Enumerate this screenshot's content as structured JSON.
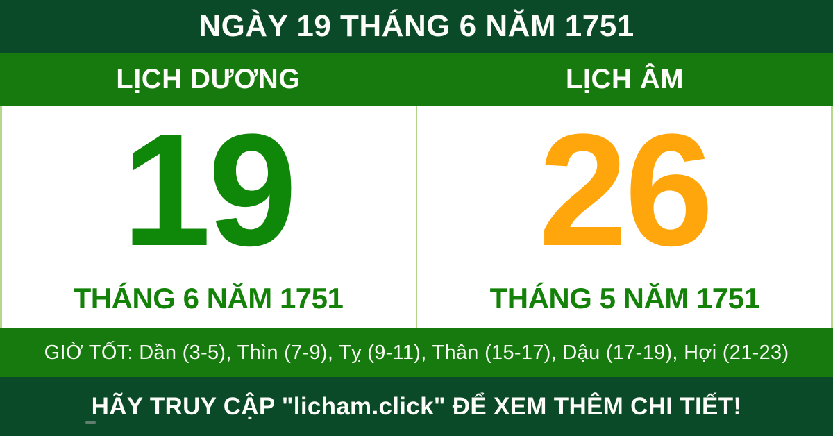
{
  "header": {
    "title": "NGÀY 19 THÁNG 6 NĂM 1751"
  },
  "calendar_tabs": {
    "solar_label": "LỊCH DƯƠNG",
    "lunar_label": "LỊCH ÂM"
  },
  "solar_panel": {
    "day": "19",
    "month_year": "THÁNG 6 NĂM 1751"
  },
  "lunar_panel": {
    "day": "26",
    "month_year": "THÁNG 5 NĂM 1751"
  },
  "good_hours": {
    "text": "GIỜ TỐT: Dần (3-5), Thìn (7-9), Tỵ (9-11), Thân (15-17), Dậu (17-19), Hợi (21-23)"
  },
  "footer": {
    "cta": "HÃY TRUY CẬP \"licham.click\" ĐỂ XEM THÊM CHI TIẾT!"
  },
  "colors": {
    "dark_banner_green": "#0B4A28",
    "band_green": "#177A0E",
    "solar_day_green": "#0F8708",
    "lunar_day_orange": "#FFA60D",
    "month_label_green": "#148109",
    "divider_light_green": "#AFD48A",
    "text_white": "#FCFCF8"
  }
}
